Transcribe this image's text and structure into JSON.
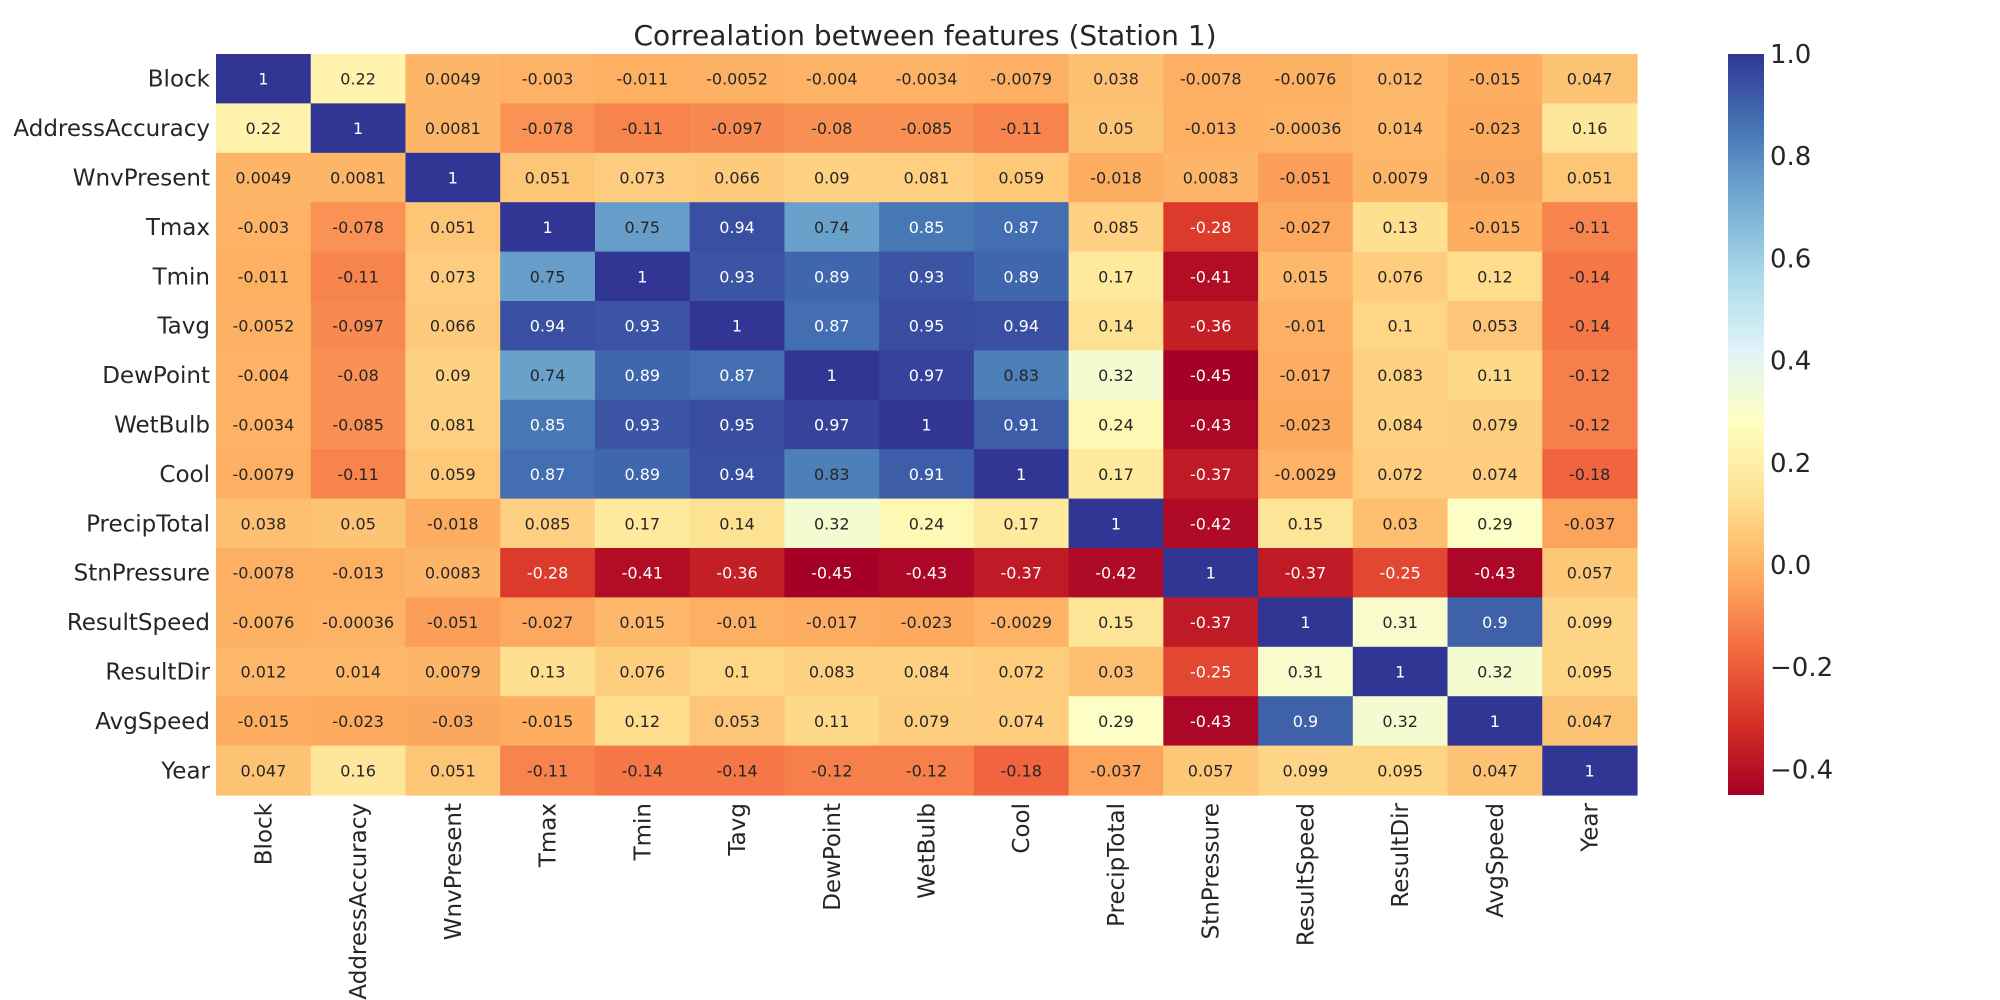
{
  "chart_data": {
    "type": "heatmap",
    "title": "Correalation between features (Station 1)",
    "xlabel": "",
    "ylabel": "",
    "labels": [
      "Block",
      "AddressAccuracy",
      "WnvPresent",
      "Tmax",
      "Tmin",
      "Tavg",
      "DewPoint",
      "WetBulb",
      "Cool",
      "PrecipTotal",
      "StnPressure",
      "ResultSpeed",
      "ResultDir",
      "AvgSpeed",
      "Year"
    ],
    "cell_labels": [
      [
        "1",
        "0.22",
        "0.0049",
        "-0.003",
        "-0.011",
        "-0.0052",
        "-0.004",
        "-0.0034",
        "-0.0079",
        "0.038",
        "-0.0078",
        "-0.0076",
        "0.012",
        "-0.015",
        "0.047"
      ],
      [
        "0.22",
        "1",
        "0.0081",
        "-0.078",
        "-0.11",
        "-0.097",
        "-0.08",
        "-0.085",
        "-0.11",
        "0.05",
        "-0.013",
        "-0.00036",
        "0.014",
        "-0.023",
        "0.16"
      ],
      [
        "0.0049",
        "0.0081",
        "1",
        "0.051",
        "0.073",
        "0.066",
        "0.09",
        "0.081",
        "0.059",
        "-0.018",
        "0.0083",
        "-0.051",
        "0.0079",
        "-0.03",
        "0.051"
      ],
      [
        "-0.003",
        "-0.078",
        "0.051",
        "1",
        "0.75",
        "0.94",
        "0.74",
        "0.85",
        "0.87",
        "0.085",
        "-0.28",
        "-0.027",
        "0.13",
        "-0.015",
        "-0.11"
      ],
      [
        "-0.011",
        "-0.11",
        "0.073",
        "0.75",
        "1",
        "0.93",
        "0.89",
        "0.93",
        "0.89",
        "0.17",
        "-0.41",
        "0.015",
        "0.076",
        "0.12",
        "-0.14"
      ],
      [
        "-0.0052",
        "-0.097",
        "0.066",
        "0.94",
        "0.93",
        "1",
        "0.87",
        "0.95",
        "0.94",
        "0.14",
        "-0.36",
        "-0.01",
        "0.1",
        "0.053",
        "-0.14"
      ],
      [
        "-0.004",
        "-0.08",
        "0.09",
        "0.74",
        "0.89",
        "0.87",
        "1",
        "0.97",
        "0.83",
        "0.32",
        "-0.45",
        "-0.017",
        "0.083",
        "0.11",
        "-0.12"
      ],
      [
        "-0.0034",
        "-0.085",
        "0.081",
        "0.85",
        "0.93",
        "0.95",
        "0.97",
        "1",
        "0.91",
        "0.24",
        "-0.43",
        "-0.023",
        "0.084",
        "0.079",
        "-0.12"
      ],
      [
        "-0.0079",
        "-0.11",
        "0.059",
        "0.87",
        "0.89",
        "0.94",
        "0.83",
        "0.91",
        "1",
        "0.17",
        "-0.37",
        "-0.0029",
        "0.072",
        "0.074",
        "-0.18"
      ],
      [
        "0.038",
        "0.05",
        "-0.018",
        "0.085",
        "0.17",
        "0.14",
        "0.32",
        "0.24",
        "0.17",
        "1",
        "-0.42",
        "0.15",
        "0.03",
        "0.29",
        "-0.037"
      ],
      [
        "-0.0078",
        "-0.013",
        "0.0083",
        "-0.28",
        "-0.41",
        "-0.36",
        "-0.45",
        "-0.43",
        "-0.37",
        "-0.42",
        "1",
        "-0.37",
        "-0.25",
        "-0.43",
        "0.057"
      ],
      [
        "-0.0076",
        "-0.00036",
        "-0.051",
        "-0.027",
        "0.015",
        "-0.01",
        "-0.017",
        "-0.023",
        "-0.0029",
        "0.15",
        "-0.37",
        "1",
        "0.31",
        "0.9",
        "0.099"
      ],
      [
        "0.012",
        "0.014",
        "0.0079",
        "0.13",
        "0.076",
        "0.1",
        "0.083",
        "0.084",
        "0.072",
        "0.03",
        "-0.25",
        "0.31",
        "1",
        "0.32",
        "0.095"
      ],
      [
        "-0.015",
        "-0.023",
        "-0.03",
        "-0.015",
        "0.12",
        "0.053",
        "0.11",
        "0.079",
        "0.074",
        "0.29",
        "-0.43",
        "0.9",
        "0.32",
        "1",
        "0.047"
      ],
      [
        "0.047",
        "0.16",
        "0.051",
        "-0.11",
        "-0.14",
        "-0.14",
        "-0.12",
        "-0.12",
        "-0.18",
        "-0.037",
        "0.057",
        "0.099",
        "0.095",
        "0.047",
        "1"
      ]
    ],
    "colorbar": {
      "colormap": "RdYlBu",
      "vmin": -0.45,
      "vmax": 1.0,
      "ticks": [
        "1.0",
        "0.8",
        "0.6",
        "0.4",
        "0.2",
        "0.0",
        "−0.2",
        "−0.4"
      ]
    },
    "annotation_colors": {
      "dark_text": "#262626",
      "light_text": "#ffffff"
    }
  }
}
